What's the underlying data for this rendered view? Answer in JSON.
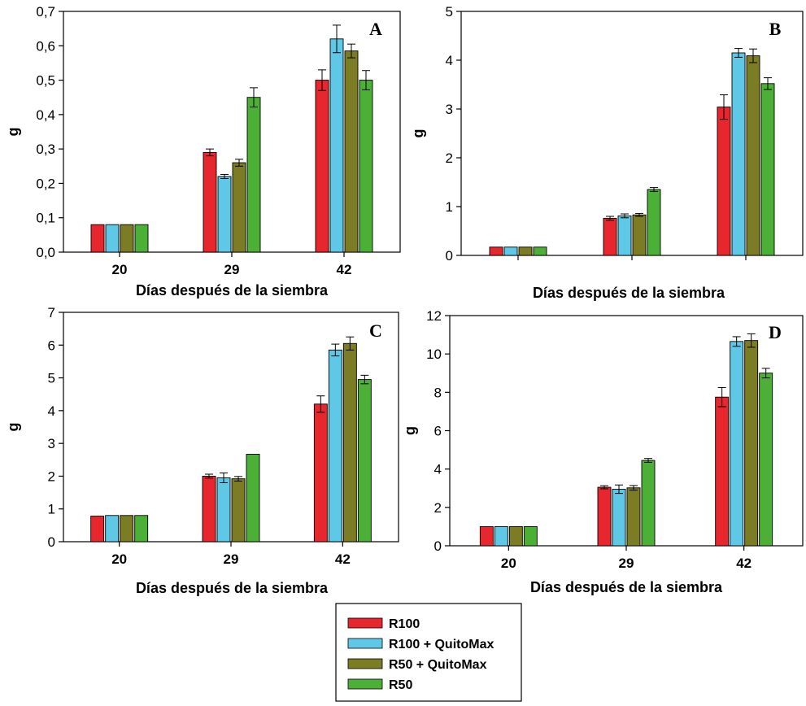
{
  "colors": {
    "R100": "#e8262d",
    "R100_QuitoMax": "#5ec8e6",
    "R50_QuitoMax": "#7c7c24",
    "R50": "#4caf36"
  },
  "legend": {
    "entries": [
      "R100",
      "R100 + QuitoMax",
      "R50 + QuitoMax",
      "R50"
    ],
    "placement": "bottom-center"
  },
  "chart_data": [
    {
      "type": "bar",
      "panel": "A",
      "categories": [
        "20",
        "29",
        "42"
      ],
      "xlabel": "Días después de la siembra",
      "ylabel": "g",
      "ylim": [
        0,
        0.7
      ],
      "yticks": [
        "0,0",
        "0,1",
        "0,2",
        "0,3",
        "0,4",
        "0,5",
        "0,6",
        "0,7"
      ],
      "series": [
        {
          "name": "R100",
          "values": [
            0.08,
            0.29,
            0.5
          ],
          "errors": [
            0,
            0.01,
            0.03
          ]
        },
        {
          "name": "R100 + QuitoMax",
          "values": [
            0.08,
            0.22,
            0.62
          ],
          "errors": [
            0,
            0.006,
            0.04
          ]
        },
        {
          "name": "R50 + QuitoMax",
          "values": [
            0.08,
            0.26,
            0.585
          ],
          "errors": [
            0,
            0.01,
            0.02
          ]
        },
        {
          "name": "R50",
          "values": [
            0.08,
            0.45,
            0.5
          ],
          "errors": [
            0,
            0.028,
            0.028
          ]
        }
      ]
    },
    {
      "type": "bar",
      "panel": "B",
      "categories": [
        "",
        "",
        ""
      ],
      "xlabel": "Días después de la siembra",
      "ylabel": "g",
      "ylim": [
        0,
        5
      ],
      "yticks": [
        "0",
        "1",
        "2",
        "3",
        "4",
        "5"
      ],
      "series": [
        {
          "name": "R100",
          "values": [
            0.17,
            0.76,
            3.04
          ],
          "errors": [
            0,
            0.04,
            0.25
          ]
        },
        {
          "name": "R100 + QuitoMax",
          "values": [
            0.17,
            0.81,
            4.15
          ],
          "errors": [
            0,
            0.04,
            0.09
          ]
        },
        {
          "name": "R50 + QuitoMax",
          "values": [
            0.17,
            0.83,
            4.09
          ],
          "errors": [
            0,
            0.03,
            0.14
          ]
        },
        {
          "name": "R50",
          "values": [
            0.17,
            1.35,
            3.52
          ],
          "errors": [
            0,
            0.04,
            0.12
          ]
        }
      ]
    },
    {
      "type": "bar",
      "panel": "C",
      "categories": [
        "20",
        "29",
        "42"
      ],
      "xlabel": "Días después de la siembra",
      "ylabel": "g",
      "ylim": [
        0,
        7
      ],
      "yticks": [
        "0",
        "1",
        "2",
        "3",
        "4",
        "5",
        "6",
        "7"
      ],
      "series": [
        {
          "name": "R100",
          "values": [
            0.78,
            2.0,
            4.2
          ],
          "errors": [
            0,
            0.06,
            0.25
          ]
        },
        {
          "name": "R100 + QuitoMax",
          "values": [
            0.8,
            1.95,
            5.85
          ],
          "errors": [
            0,
            0.15,
            0.18
          ]
        },
        {
          "name": "R50 + QuitoMax",
          "values": [
            0.8,
            1.92,
            6.05
          ],
          "errors": [
            0,
            0.07,
            0.2
          ]
        },
        {
          "name": "R50",
          "values": [
            0.8,
            2.67,
            4.95
          ],
          "errors": [
            0,
            0,
            0.13
          ]
        }
      ]
    },
    {
      "type": "bar",
      "panel": "D",
      "categories": [
        "20",
        "29",
        "42"
      ],
      "xlabel": "Días después de la siembra",
      "ylabel": "g",
      "ylim": [
        0,
        12
      ],
      "yticks": [
        "0",
        "2",
        "4",
        "6",
        "8",
        "10",
        "12"
      ],
      "series": [
        {
          "name": "R100",
          "values": [
            1.0,
            3.05,
            7.75
          ],
          "errors": [
            0,
            0.08,
            0.5
          ]
        },
        {
          "name": "R100 + QuitoMax",
          "values": [
            1.0,
            2.95,
            10.65
          ],
          "errors": [
            0,
            0.22,
            0.25
          ]
        },
        {
          "name": "R50 + QuitoMax",
          "values": [
            1.0,
            3.02,
            10.7
          ],
          "errors": [
            0,
            0.12,
            0.35
          ]
        },
        {
          "name": "R50",
          "values": [
            1.0,
            4.45,
            9.0
          ],
          "errors": [
            0,
            0.1,
            0.25
          ]
        }
      ]
    }
  ]
}
